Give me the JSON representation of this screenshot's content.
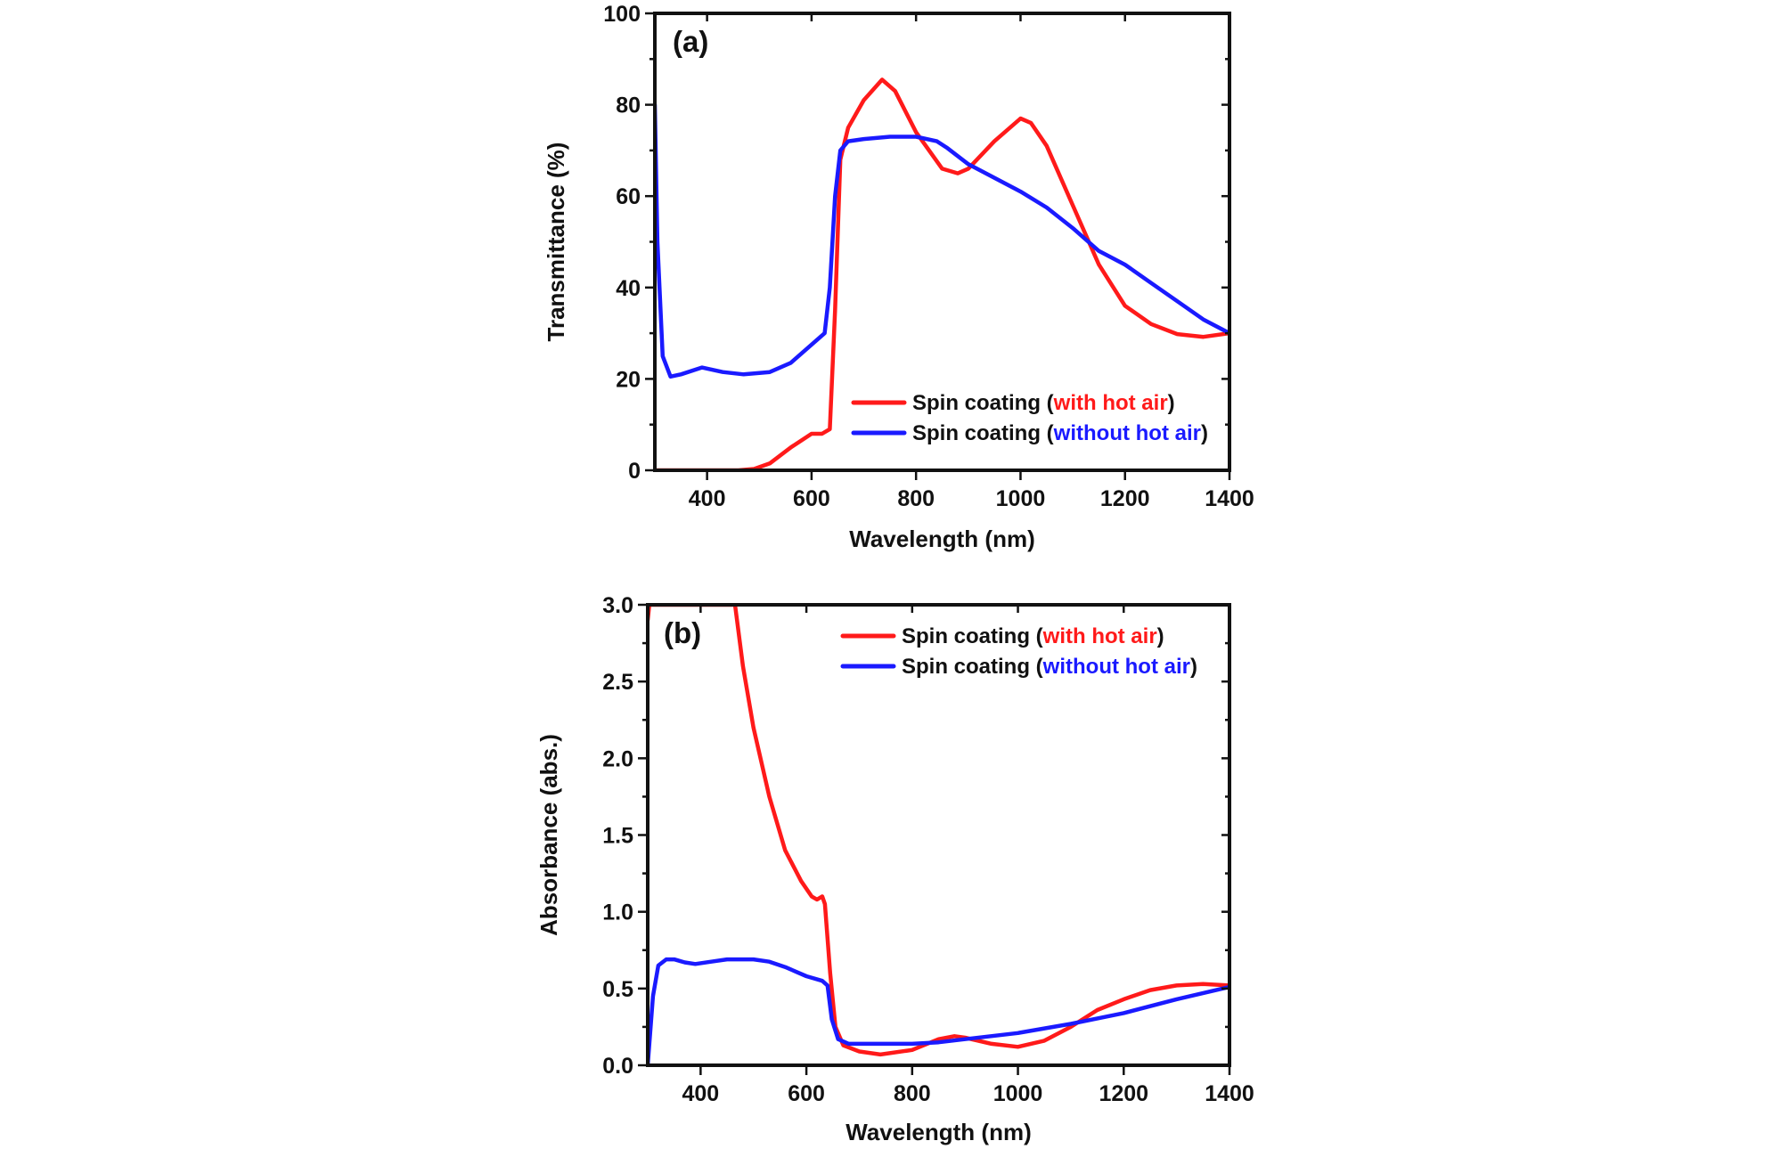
{
  "chart_data": [
    {
      "type": "line",
      "panel_label": "(a)",
      "xlabel": "Wavelength (nm)",
      "ylabel": "Transmittance (%)",
      "xlim": [
        300,
        1400
      ],
      "ylim": [
        0,
        100
      ],
      "xticks": [
        400,
        600,
        800,
        1000,
        1200,
        1400
      ],
      "yticks": [
        0,
        20,
        40,
        60,
        80,
        100
      ],
      "grid": false,
      "legend_position": "bottom-right",
      "series": [
        {
          "name": "Spin coating (with hot air)",
          "legend_prefix": "Spin coating (",
          "legend_highlight": "with hot air",
          "legend_suffix": ")",
          "color": "#ff1a1a",
          "x": [
            300,
            400,
            460,
            490,
            520,
            560,
            600,
            620,
            635,
            645,
            655,
            670,
            700,
            735,
            760,
            800,
            850,
            880,
            900,
            950,
            1000,
            1020,
            1050,
            1100,
            1150,
            1200,
            1250,
            1300,
            1350,
            1400
          ],
          "y": [
            0,
            0,
            0,
            0.3,
            1.5,
            5,
            8,
            8,
            9,
            35,
            68,
            75,
            81,
            85.5,
            83,
            74,
            66,
            65,
            66,
            72,
            77,
            76,
            71,
            58,
            45,
            36,
            32,
            29.8,
            29.2,
            30
          ]
        },
        {
          "name": "Spin coating (without hot air)",
          "legend_prefix": "Spin coating (",
          "legend_highlight": "without hot air",
          "legend_suffix": ")",
          "color": "#1a1aff",
          "x": [
            300,
            305,
            315,
            330,
            350,
            390,
            430,
            470,
            520,
            560,
            600,
            625,
            635,
            645,
            655,
            670,
            700,
            750,
            800,
            840,
            860,
            900,
            1000,
            1050,
            1100,
            1150,
            1200,
            1250,
            1300,
            1350,
            1400
          ],
          "y": [
            80,
            50,
            25,
            20.5,
            21,
            22.5,
            21.5,
            21,
            21.5,
            23.5,
            27.5,
            30,
            40,
            60,
            70,
            72,
            72.5,
            73,
            73,
            72,
            70.5,
            67,
            61,
            57.5,
            53,
            48,
            45,
            41,
            37,
            33,
            30
          ]
        }
      ]
    },
    {
      "type": "line",
      "panel_label": "(b)",
      "xlabel": "Wavelength (nm)",
      "ylabel": "Absorbance (abs.)",
      "xlim": [
        300,
        1400
      ],
      "ylim": [
        0,
        3.0
      ],
      "xticks": [
        400,
        600,
        800,
        1000,
        1200,
        1400
      ],
      "yticks": [
        0.0,
        0.5,
        1.0,
        1.5,
        2.0,
        2.5,
        3.0
      ],
      "ytick_labels": [
        "0.0",
        "0.5",
        "1.0",
        "1.5",
        "2.0",
        "2.5",
        "3.0"
      ],
      "grid": false,
      "legend_position": "top-right",
      "series": [
        {
          "name": "Spin coating (with hot air)",
          "legend_prefix": "Spin coating (",
          "legend_highlight": "with hot air",
          "legend_suffix": ")",
          "color": "#ff1a1a",
          "x": [
            300,
            303,
            465,
            480,
            500,
            530,
            560,
            590,
            610,
            620,
            630,
            635,
            645,
            655,
            670,
            700,
            740,
            800,
            850,
            880,
            900,
            950,
            1000,
            1050,
            1100,
            1150,
            1200,
            1250,
            1300,
            1350,
            1400
          ],
          "y": [
            2.9,
            3.0,
            3.0,
            2.6,
            2.2,
            1.75,
            1.4,
            1.2,
            1.1,
            1.08,
            1.1,
            1.05,
            0.6,
            0.25,
            0.13,
            0.09,
            0.07,
            0.1,
            0.17,
            0.19,
            0.18,
            0.14,
            0.12,
            0.16,
            0.25,
            0.36,
            0.43,
            0.49,
            0.52,
            0.53,
            0.52
          ]
        },
        {
          "name": "Spin coating (without hot air)",
          "legend_prefix": "Spin coating (",
          "legend_highlight": "without hot air",
          "legend_suffix": ")",
          "color": "#1a1aff",
          "x": [
            300,
            310,
            320,
            335,
            350,
            370,
            390,
            420,
            450,
            500,
            530,
            560,
            600,
            630,
            640,
            648,
            660,
            680,
            750,
            800,
            850,
            900,
            1000,
            1100,
            1200,
            1300,
            1400
          ],
          "y": [
            0.0,
            0.45,
            0.65,
            0.69,
            0.69,
            0.67,
            0.66,
            0.675,
            0.69,
            0.69,
            0.675,
            0.64,
            0.58,
            0.55,
            0.52,
            0.3,
            0.17,
            0.14,
            0.14,
            0.14,
            0.15,
            0.17,
            0.21,
            0.27,
            0.34,
            0.43,
            0.51
          ]
        }
      ]
    }
  ]
}
